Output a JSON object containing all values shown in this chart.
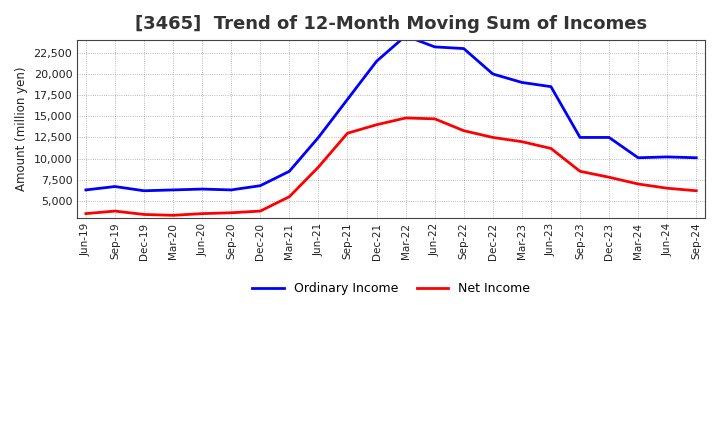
{
  "title": "[3465]  Trend of 12-Month Moving Sum of Incomes",
  "ylabel": "Amount (million yen)",
  "x_labels": [
    "Jun-19",
    "Sep-19",
    "Dec-19",
    "Mar-20",
    "Jun-20",
    "Sep-20",
    "Dec-20",
    "Mar-21",
    "Jun-21",
    "Sep-21",
    "Dec-21",
    "Mar-22",
    "Jun-22",
    "Sep-22",
    "Dec-22",
    "Mar-23",
    "Jun-23",
    "Sep-23",
    "Dec-23",
    "Mar-24",
    "Jun-24",
    "Sep-24"
  ],
  "ordinary_income": [
    6300,
    6700,
    6200,
    6300,
    6400,
    6300,
    6800,
    8500,
    12500,
    17000,
    21500,
    24500,
    23200,
    23000,
    20000,
    19000,
    18500,
    12500,
    12500,
    10100,
    10200,
    10100
  ],
  "net_income": [
    3500,
    3800,
    3400,
    3300,
    3500,
    3600,
    3800,
    5500,
    9000,
    13000,
    14000,
    14800,
    14700,
    13300,
    12500,
    12000,
    11200,
    8500,
    7800,
    7000,
    6500,
    6200
  ],
  "ordinary_color": "#0000FF",
  "net_color": "#FF0000",
  "background_color": "#FFFFFF",
  "plot_background": "#FFFFFF",
  "grid_color": "#999999",
  "ylim_min": 3000,
  "ylim_max": 24000,
  "yticks": [
    5000,
    7500,
    10000,
    12500,
    15000,
    17500,
    20000,
    22500
  ],
  "line_width": 2.0,
  "title_fontsize": 13,
  "title_color": "#333333",
  "legend_labels": [
    "Ordinary Income",
    "Net Income"
  ]
}
